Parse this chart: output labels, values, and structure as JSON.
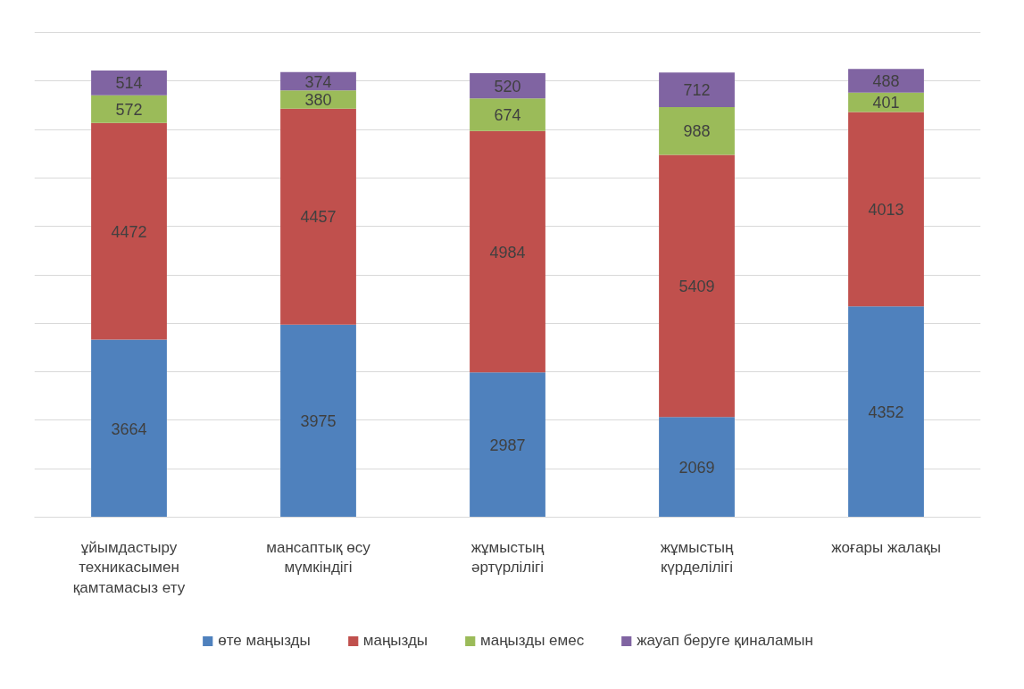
{
  "chart_data": {
    "type": "bar",
    "stacked": true,
    "categories": [
      "ұйымдастыру техникасымен қамтамасыз ету",
      "мансаптық өсу мүмкіндігі",
      "жұмыстың әртүрлілігі",
      "жұмыстың күрделілігі",
      "жоғары жалақы"
    ],
    "series": [
      {
        "name": "өте маңызды",
        "color": "#4f81bd",
        "values": [
          3664,
          3975,
          2987,
          2069,
          4352
        ]
      },
      {
        "name": "маңызды",
        "color": "#c0504d",
        "values": [
          4472,
          4457,
          4984,
          5409,
          4013
        ]
      },
      {
        "name": "маңызды емес",
        "color": "#9bbb59",
        "values": [
          572,
          380,
          674,
          988,
          401
        ]
      },
      {
        "name": "жауап беруге қиналамын",
        "color": "#8064a2",
        "values": [
          514,
          374,
          520,
          712,
          488
        ]
      }
    ],
    "yticks": [
      {
        "value": 0,
        "label": null
      },
      {
        "value": 1000,
        "label": null
      },
      {
        "value": 2000,
        "label": null
      },
      {
        "value": 3000,
        "label": null
      },
      {
        "value": 4000,
        "label": null
      },
      {
        "value": 5000,
        "label": null
      },
      {
        "value": 6000,
        "label": null
      },
      {
        "value": 7000,
        "label": null
      },
      {
        "value": 8000,
        "label": null
      },
      {
        "value": 9000,
        "label": null
      },
      {
        "value": 10000,
        "label": null
      }
    ],
    "tick_labels": "x",
    "grid": "y",
    "legend": "bottom",
    "data_labels": true
  }
}
